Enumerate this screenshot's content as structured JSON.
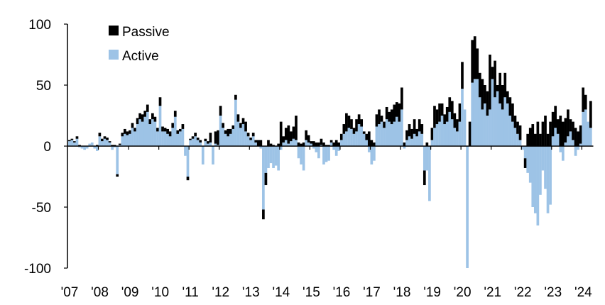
{
  "chart_data": {
    "type": "bar",
    "stacked": true,
    "frequency": "monthly",
    "x_tick_labels": [
      "'07",
      "'08",
      "'09",
      "'10",
      "'11",
      "'12",
      "'13",
      "'14",
      "'15",
      "'16",
      "'17",
      "'18",
      "'19",
      "'20",
      "'21",
      "'22",
      "'23",
      "'24"
    ],
    "ylim": [
      -100,
      100
    ],
    "y_ticks": [
      100,
      50,
      0,
      -50,
      -100
    ],
    "grid": false,
    "legend_position": "top-left",
    "series": [
      {
        "name": "Passive",
        "color": "#000000",
        "values": [
          1,
          1,
          1,
          2,
          1,
          0,
          0,
          0,
          0,
          0,
          0,
          1,
          3,
          2,
          2,
          2,
          1,
          1,
          1,
          -2,
          1,
          3,
          4,
          3,
          3,
          4,
          3,
          5,
          5,
          6,
          5,
          6,
          4,
          5,
          4,
          3,
          7,
          4,
          3,
          4,
          4,
          4,
          5,
          3,
          2,
          4,
          0,
          -3,
          1,
          2,
          3,
          2,
          2,
          0,
          2,
          2,
          8,
          0,
          10,
          12,
          8,
          4,
          3,
          6,
          4,
          3,
          4,
          6,
          4,
          5,
          8,
          3,
          2,
          3,
          2,
          5,
          5,
          -8,
          -10,
          5,
          2,
          1,
          0,
          2,
          20,
          5,
          10,
          15,
          8,
          10,
          20,
          3,
          2,
          3,
          8,
          6,
          2,
          4,
          3,
          3,
          5,
          3,
          1,
          1,
          2,
          3,
          5,
          3,
          5,
          8,
          15,
          10,
          8,
          5,
          10,
          8,
          6,
          2,
          5,
          12,
          5,
          3,
          10,
          12,
          5,
          5,
          10,
          8,
          12,
          14,
          12,
          15,
          18,
          3,
          8,
          10,
          8,
          12,
          6,
          10,
          8,
          -12,
          3,
          0,
          10,
          18,
          12,
          15,
          10,
          8,
          12,
          12,
          15,
          12,
          10,
          15,
          22,
          0,
          0,
          20,
          35,
          35,
          25,
          20,
          25,
          15,
          20,
          45,
          10,
          30,
          5,
          25,
          20,
          20,
          10,
          15,
          15,
          10,
          10,
          12,
          0,
          -8,
          10,
          15,
          18,
          10,
          20,
          10,
          20,
          25,
          10,
          20,
          20,
          18,
          12,
          25,
          20,
          20,
          22,
          10,
          15,
          15,
          12,
          15,
          20,
          12,
          0,
          22
        ]
      },
      {
        "name": "Active",
        "color": "#9dc3e6",
        "values": [
          4,
          5,
          3,
          6,
          -1,
          -2,
          -3,
          -2,
          2,
          3,
          -2,
          -4,
          8,
          4,
          6,
          5,
          3,
          -3,
          -1,
          -23,
          1,
          8,
          10,
          9,
          10,
          15,
          12,
          18,
          22,
          20,
          24,
          28,
          18,
          22,
          20,
          12,
          33,
          12,
          12,
          10,
          8,
          15,
          24,
          10,
          12,
          14,
          -8,
          -25,
          5,
          6,
          8,
          5,
          3,
          -15,
          4,
          2,
          3,
          -15,
          2,
          1,
          25,
          15,
          10,
          8,
          10,
          14,
          38,
          20,
          15,
          18,
          12,
          8,
          5,
          8,
          3,
          0,
          -2,
          -52,
          -22,
          -18,
          -14,
          -18,
          -16,
          -20,
          -3,
          3,
          5,
          2,
          4,
          6,
          5,
          -10,
          -15,
          -20,
          5,
          3,
          2,
          -2,
          -5,
          -10,
          1,
          -15,
          -13,
          -12,
          3,
          -3,
          -8,
          -4,
          5,
          10,
          12,
          15,
          14,
          10,
          12,
          18,
          16,
          10,
          5,
          -5,
          -15,
          -12,
          16,
          18,
          20,
          15,
          22,
          20,
          18,
          20,
          24,
          20,
          30,
          -2,
          5,
          8,
          6,
          10,
          8,
          12,
          10,
          -20,
          -20,
          -45,
          5,
          15,
          18,
          20,
          25,
          18,
          20,
          28,
          22,
          15,
          12,
          20,
          47,
          30,
          -100,
          0,
          52,
          55,
          55,
          40,
          30,
          35,
          25,
          30,
          55,
          40,
          45,
          35,
          30,
          40,
          35,
          25,
          20,
          15,
          10,
          5,
          -3,
          -10,
          -22,
          -30,
          -50,
          -55,
          -65,
          -40,
          -20,
          -35,
          -55,
          -48,
          8,
          15,
          10,
          -5,
          -12,
          3,
          8,
          12,
          5,
          -8,
          -3,
          2,
          28,
          30,
          20,
          15
        ]
      }
    ]
  }
}
